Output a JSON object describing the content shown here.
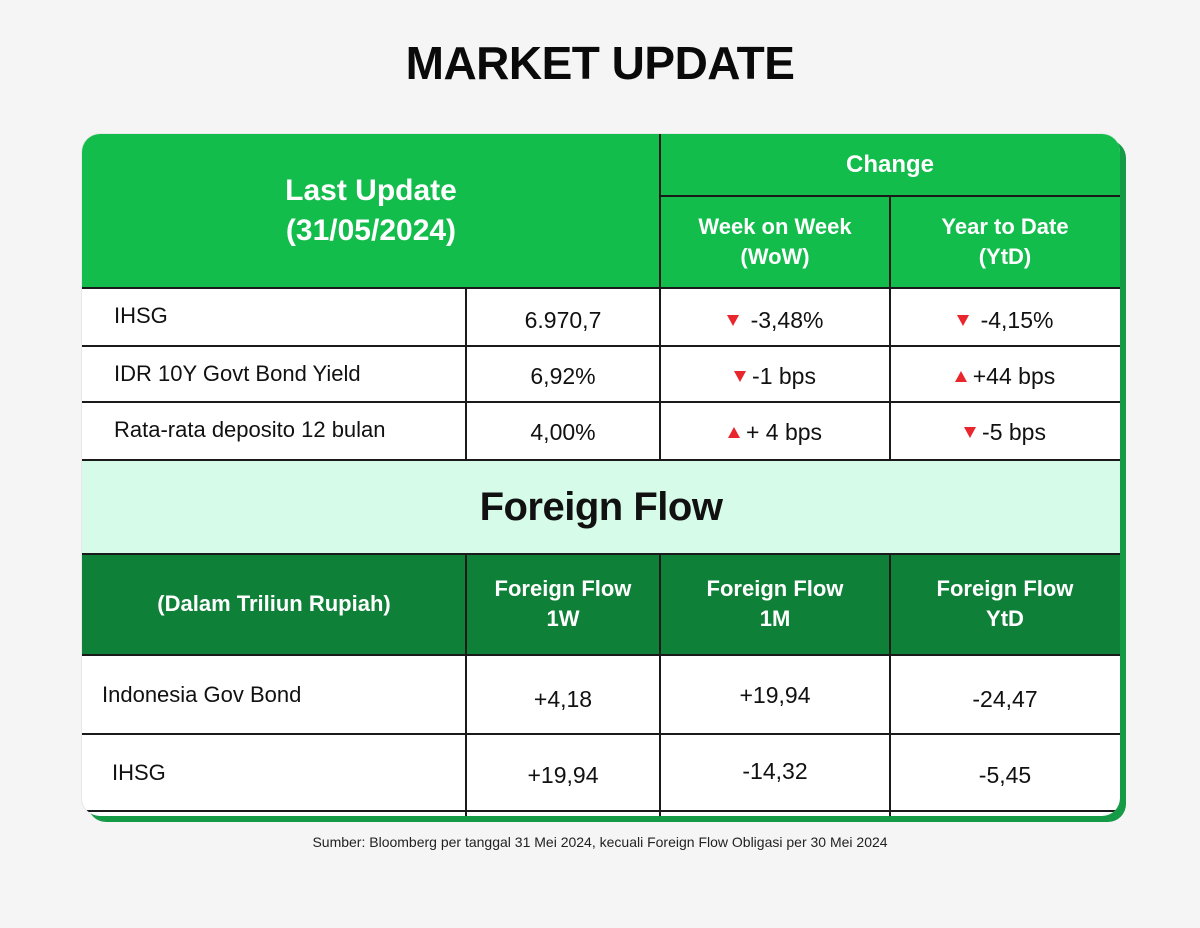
{
  "title": "MARKET UPDATE",
  "header": {
    "last_update_line1": "Last Update",
    "last_update_line2": "(31/05/2024)",
    "change": "Change",
    "wow_line1": "Week on Week",
    "wow_line2": "(WoW)",
    "ytd_line1": "Year to Date",
    "ytd_line2": "(YtD)"
  },
  "market_rows": [
    {
      "label": "IHSG",
      "value": "6.970,7",
      "wow": "-3,48%",
      "wow_dir": "down",
      "ytd": "-4,15%",
      "ytd_dir": "down"
    },
    {
      "label": "IDR 10Y Govt Bond Yield",
      "value": "6,92%",
      "wow": "-1 bps",
      "wow_dir": "down",
      "ytd": "+44 bps",
      "ytd_dir": "up"
    },
    {
      "label": "Rata-rata deposito 12 bulan",
      "value": "4,00%",
      "wow": "+ 4 bps",
      "wow_dir": "up",
      "ytd": "-5 bps",
      "ytd_dir": "down"
    }
  ],
  "foreign_flow_title": "Foreign Flow",
  "flow_header": {
    "unit": "(Dalam Triliun Rupiah)",
    "w1_line1": "Foreign Flow",
    "w1_line2": "1W",
    "m1_line1": "Foreign Flow",
    "m1_line2": "1M",
    "ytd_line1": "Foreign Flow",
    "ytd_line2": "YtD"
  },
  "flow_rows": [
    {
      "label": "Indonesia Gov Bond",
      "w1": "+4,18",
      "m1": "+19,94",
      "ytd": "-24,47"
    },
    {
      "label": "IHSG",
      "w1": "+19,94",
      "m1": "-14,32",
      "ytd": "-5,45"
    }
  ],
  "source": "Sumber: Bloomberg per tanggal 31 Mei 2024, kecuali Foreign Flow Obligasi per 30 Mei 2024",
  "colors": {
    "header_green": "#12bd4c",
    "header_dark": "#0f8038",
    "band": "#d6fbe8",
    "arrow": "#e8262b"
  }
}
